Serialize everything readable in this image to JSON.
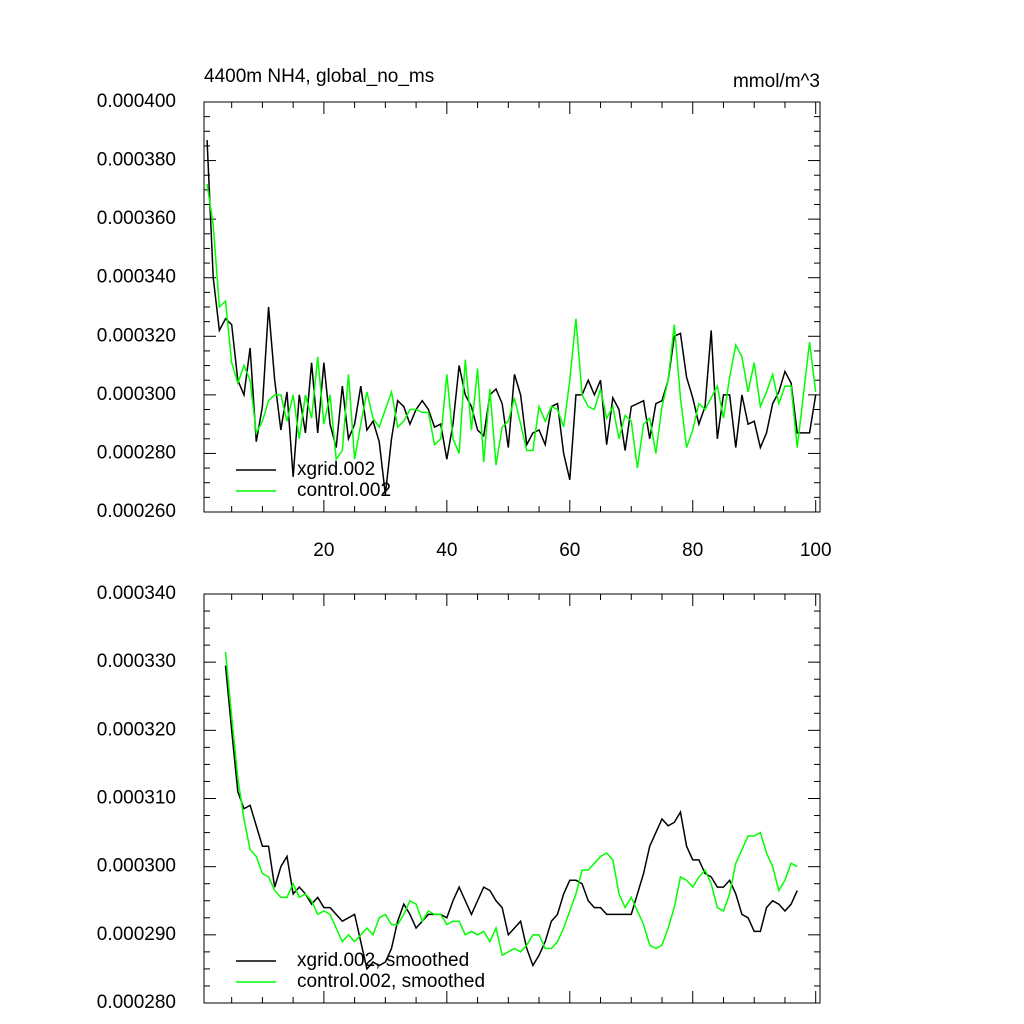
{
  "chart_data": [
    {
      "type": "line",
      "title": "4400m NH4, global_no_ms",
      "units_label": "mmol/m^3",
      "x": [
        1,
        2,
        3,
        4,
        5,
        6,
        7,
        8,
        9,
        10,
        11,
        12,
        13,
        14,
        15,
        16,
        17,
        18,
        19,
        20,
        21,
        22,
        23,
        24,
        25,
        26,
        27,
        28,
        29,
        30,
        31,
        32,
        33,
        34,
        35,
        36,
        37,
        38,
        39,
        40,
        41,
        42,
        43,
        44,
        45,
        46,
        47,
        48,
        49,
        50,
        51,
        52,
        53,
        54,
        55,
        56,
        57,
        58,
        59,
        60,
        61,
        62,
        63,
        64,
        65,
        66,
        67,
        68,
        69,
        70,
        71,
        72,
        73,
        74,
        75,
        76,
        77,
        78,
        79,
        80,
        81,
        82,
        83,
        84,
        85,
        86,
        87,
        88,
        89,
        90,
        91,
        92,
        93,
        94,
        95,
        96,
        97,
        98,
        99,
        100
      ],
      "xlim": [
        0.5,
        100.7
      ],
      "xticks": [
        20,
        40,
        60,
        80,
        100
      ],
      "show_xtick_labels": true,
      "ylim": [
        0.00026,
        0.0004
      ],
      "yticks": [
        {
          "value": 0.00026,
          "label": "0.000260"
        },
        {
          "value": 0.00028,
          "label": "0.000280"
        },
        {
          "value": 0.0003,
          "label": "0.000300"
        },
        {
          "value": 0.00032,
          "label": "0.000320"
        },
        {
          "value": 0.00034,
          "label": "0.000340"
        },
        {
          "value": 0.00036,
          "label": "0.000360"
        },
        {
          "value": 0.00038,
          "label": "0.000380"
        },
        {
          "value": 0.0004,
          "label": "0.000400"
        }
      ],
      "legend": "lower left",
      "series": [
        {
          "name": "xgrid.002",
          "color": "#000000",
          "values": [
            0.000387,
            0.00034,
            0.000322,
            0.000326,
            0.000324,
            0.000305,
            0.0003,
            0.000316,
            0.000284,
            0.000296,
            0.00033,
            0.000305,
            0.000288,
            0.000301,
            0.000272,
            0.0003,
            0.000287,
            0.000311,
            0.000287,
            0.000311,
            0.00029,
            0.000282,
            0.000303,
            0.000285,
            0.00029,
            0.000303,
            0.000288,
            0.000291,
            0.000284,
            0.000266,
            0.000285,
            0.000298,
            0.000296,
            0.00029,
            0.000295,
            0.000298,
            0.000295,
            0.000289,
            0.00029,
            0.000278,
            0.00029,
            0.00031,
            0.0003,
            0.000296,
            0.000288,
            0.000286,
            0.0003,
            0.000302,
            0.000297,
            0.000282,
            0.000307,
            0.0003,
            0.000283,
            0.000287,
            0.000288,
            0.000283,
            0.000296,
            0.000297,
            0.00028,
            0.000271,
            0.0003,
            0.0003,
            0.000305,
            0.0003,
            0.000305,
            0.000283,
            0.000299,
            0.000295,
            0.000281,
            0.000296,
            0.000297,
            0.000298,
            0.000285,
            0.000297,
            0.000298,
            0.000305,
            0.00032,
            0.000321,
            0.000306,
            0.000299,
            0.00029,
            0.000296,
            0.000322,
            0.000285,
            0.0003,
            0.0003,
            0.000282,
            0.0003,
            0.00029,
            0.000291,
            0.000282,
            0.000287,
            0.000297,
            0.000301,
            0.000308,
            0.000304,
            0.000287,
            0.000287,
            0.000287,
            0.0003
          ]
        },
        {
          "name": "control.002",
          "color": "#00ff00",
          "values": [
            0.000372,
            0.000358,
            0.00033,
            0.000332,
            0.000311,
            0.000304,
            0.00031,
            0.000305,
            0.000287,
            0.000291,
            0.000298,
            0.0003,
            0.0003,
            0.000291,
            0.0003,
            0.000285,
            0.0003,
            0.000292,
            0.000313,
            0.00029,
            0.0003,
            0.000278,
            0.000281,
            0.000307,
            0.000278,
            0.00029,
            0.000301,
            0.000292,
            0.000289,
            0.000295,
            0.000301,
            0.000289,
            0.000291,
            0.000295,
            0.000295,
            0.000294,
            0.000294,
            0.000283,
            0.000285,
            0.000307,
            0.000285,
            0.00028,
            0.000312,
            0.000288,
            0.000309,
            0.000277,
            0.000302,
            0.000276,
            0.000289,
            0.000291,
            0.000299,
            0.00029,
            0.000281,
            0.000281,
            0.000296,
            0.000291,
            0.000296,
            0.000295,
            0.000289,
            0.000305,
            0.000326,
            0.0003,
            0.000296,
            0.000295,
            0.000302,
            0.000292,
            0.000296,
            0.000285,
            0.000293,
            0.000291,
            0.000275,
            0.00029,
            0.000292,
            0.00028,
            0.000296,
            0.000305,
            0.000324,
            0.000299,
            0.000282,
            0.000288,
            0.000297,
            0.000295,
            0.000299,
            0.000303,
            0.000292,
            0.000306,
            0.000317,
            0.000313,
            0.000301,
            0.000311,
            0.000296,
            0.000301,
            0.000307,
            0.000297,
            0.000303,
            0.000303,
            0.000282,
            0.0003,
            0.000318,
            0.000301
          ]
        }
      ]
    },
    {
      "type": "line",
      "x": [
        4,
        5,
        6,
        7,
        8,
        9,
        10,
        11,
        12,
        13,
        14,
        15,
        16,
        17,
        18,
        19,
        20,
        21,
        22,
        23,
        24,
        25,
        26,
        27,
        28,
        29,
        30,
        31,
        32,
        33,
        34,
        35,
        36,
        37,
        38,
        39,
        40,
        41,
        42,
        43,
        44,
        45,
        46,
        47,
        48,
        49,
        50,
        51,
        52,
        53,
        54,
        55,
        56,
        57,
        58,
        59,
        60,
        61,
        62,
        63,
        64,
        65,
        66,
        67,
        68,
        69,
        70,
        71,
        72,
        73,
        74,
        75,
        76,
        77,
        78,
        79,
        80,
        81,
        82,
        83,
        84,
        85,
        86,
        87,
        88,
        89,
        90,
        91,
        92,
        93,
        94,
        95,
        96,
        97
      ],
      "xlim": [
        0.5,
        100.7
      ],
      "xticks": [
        20,
        40,
        60,
        80,
        100
      ],
      "show_xtick_labels": false,
      "ylim": [
        0.00028,
        0.00034
      ],
      "yticks": [
        {
          "value": 0.00028,
          "label": "0.000280"
        },
        {
          "value": 0.00029,
          "label": "0.000290"
        },
        {
          "value": 0.0003,
          "label": "0.000300"
        },
        {
          "value": 0.00031,
          "label": "0.000310"
        },
        {
          "value": 0.00032,
          "label": "0.000320"
        },
        {
          "value": 0.00033,
          "label": "0.000330"
        },
        {
          "value": 0.00034,
          "label": "0.000340"
        }
      ],
      "legend": "lower left",
      "series": [
        {
          "name": "xgrid.002, smoothed",
          "color": "#000000",
          "values": [
            0.0003295,
            0.00032,
            0.000311,
            0.0003085,
            0.000309,
            0.000306,
            0.000303,
            0.000303,
            0.000297,
            0.0003,
            0.0003015,
            0.000296,
            0.000297,
            0.000296,
            0.0002945,
            0.0002955,
            0.000294,
            0.000294,
            0.000293,
            0.000292,
            0.0002925,
            0.000293,
            0.000289,
            0.000285,
            0.000286,
            0.0002855,
            0.000286,
            0.000288,
            0.000292,
            0.0002945,
            0.000293,
            0.000291,
            0.000292,
            0.000293,
            0.000293,
            0.000293,
            0.0002925,
            0.000295,
            0.000297,
            0.000295,
            0.000293,
            0.000295,
            0.000297,
            0.0002965,
            0.000295,
            0.000294,
            0.00029,
            0.000291,
            0.000292,
            0.000288,
            0.0002855,
            0.000287,
            0.000289,
            0.000292,
            0.000293,
            0.000296,
            0.000298,
            0.000298,
            0.0002975,
            0.000295,
            0.000294,
            0.000294,
            0.000293,
            0.000293,
            0.000293,
            0.000293,
            0.000293,
            0.000296,
            0.000299,
            0.000303,
            0.000305,
            0.000307,
            0.000306,
            0.0003065,
            0.000308,
            0.000303,
            0.000301,
            0.000301,
            0.000299,
            0.0002985,
            0.000297,
            0.000297,
            0.000298,
            0.000296,
            0.000293,
            0.0002925,
            0.0002905,
            0.0002905,
            0.000294,
            0.000295,
            0.0002945,
            0.0002935,
            0.0002945,
            0.0002965
          ]
        },
        {
          "name": "control.002, smoothed",
          "color": "#00ff00",
          "values": [
            0.0003315,
            0.000322,
            0.000313,
            0.000307,
            0.0003025,
            0.0003015,
            0.000299,
            0.0002985,
            0.0002965,
            0.0002955,
            0.0002955,
            0.0002975,
            0.0002955,
            0.000296,
            0.000295,
            0.000293,
            0.0002935,
            0.000293,
            0.000291,
            0.000289,
            0.00029,
            0.000289,
            0.00029,
            0.000291,
            0.00029,
            0.0002925,
            0.000293,
            0.0002915,
            0.0002915,
            0.000293,
            0.000295,
            0.0002945,
            0.000292,
            0.0002935,
            0.000293,
            0.000293,
            0.0002915,
            0.000292,
            0.000292,
            0.00029,
            0.0002905,
            0.00029,
            0.0002905,
            0.000289,
            0.000291,
            0.000287,
            0.0002875,
            0.000288,
            0.0002875,
            0.0002885,
            0.00029,
            0.00029,
            0.000288,
            0.000288,
            0.000289,
            0.000291,
            0.0002935,
            0.000296,
            0.0002995,
            0.0002995,
            0.0003005,
            0.0003015,
            0.000302,
            0.000301,
            0.000296,
            0.000294,
            0.0002955,
            0.0002935,
            0.0002915,
            0.0002885,
            0.000288,
            0.0002885,
            0.000291,
            0.000294,
            0.0002985,
            0.000298,
            0.000297,
            0.0002985,
            0.0002995,
            0.0002975,
            0.000294,
            0.0002935,
            0.000296,
            0.0003005,
            0.0003025,
            0.0003045,
            0.0003045,
            0.000305,
            0.000302,
            0.0003,
            0.0002965,
            0.000298,
            0.0003005,
            0.0003
          ]
        }
      ]
    }
  ]
}
